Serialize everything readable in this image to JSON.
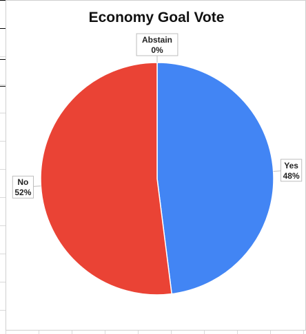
{
  "chart_data": {
    "type": "pie",
    "title": "Economy Goal Vote",
    "slices": [
      {
        "label": "Yes",
        "value": 48,
        "display": "48%",
        "color": "#4285f4"
      },
      {
        "label": "No",
        "value": 52,
        "display": "52%",
        "color": "#ea4335"
      },
      {
        "label": "Abstain",
        "value": 0,
        "display": "0%",
        "color": "#fbbc04"
      }
    ]
  }
}
